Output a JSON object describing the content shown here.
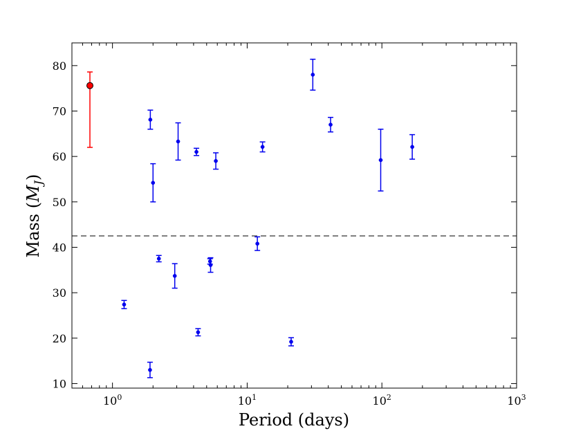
{
  "chart_data": {
    "type": "scatter",
    "xlabel": "Period (days)",
    "ylabel": "Mass (",
    "ylabel_math_symbol": "M",
    "ylabel_math_sub": "J",
    "ylabel_close": ")",
    "x_scale": "log",
    "xlim": [
      0.5,
      1000
    ],
    "ylim": [
      9,
      85
    ],
    "grid": false,
    "x_ticks": [
      {
        "value": 1,
        "base": "10",
        "exp": "0"
      },
      {
        "value": 10,
        "base": "10",
        "exp": "1"
      },
      {
        "value": 100,
        "base": "10",
        "exp": "2"
      },
      {
        "value": 1000,
        "base": "10",
        "exp": "3"
      }
    ],
    "y_ticks": [
      {
        "value": 10,
        "label": "10"
      },
      {
        "value": 20,
        "label": "20"
      },
      {
        "value": 30,
        "label": "30"
      },
      {
        "value": 40,
        "label": "40"
      },
      {
        "value": 50,
        "label": "50"
      },
      {
        "value": 60,
        "label": "60"
      },
      {
        "value": 70,
        "label": "70"
      },
      {
        "value": 80,
        "label": "80"
      }
    ],
    "reference_line": {
      "y": 42.5,
      "style": "dashed",
      "color": "#555555"
    },
    "highlight": {
      "color": "#ff0000",
      "edge_color": "#000000",
      "points": [
        {
          "x": 0.68,
          "y": 75.6,
          "ylo": 62.0,
          "yhi": 78.6
        }
      ]
    },
    "series": [
      {
        "color": "#0000ee",
        "points": [
          {
            "x": 1.22,
            "y": 27.4,
            "ylo": 26.5,
            "yhi": 28.3
          },
          {
            "x": 1.91,
            "y": 68.1,
            "ylo": 66.0,
            "yhi": 70.2
          },
          {
            "x": 1.9,
            "y": 13.0,
            "ylo": 11.3,
            "yhi": 14.7
          },
          {
            "x": 2.0,
            "y": 54.2,
            "ylo": 50.0,
            "yhi": 58.4
          },
          {
            "x": 2.21,
            "y": 37.5,
            "ylo": 36.8,
            "yhi": 38.2
          },
          {
            "x": 2.9,
            "y": 33.7,
            "ylo": 31.0,
            "yhi": 36.4
          },
          {
            "x": 3.07,
            "y": 63.3,
            "ylo": 59.2,
            "yhi": 67.4
          },
          {
            "x": 4.2,
            "y": 61.0,
            "ylo": 60.2,
            "yhi": 61.8
          },
          {
            "x": 4.32,
            "y": 21.3,
            "ylo": 20.5,
            "yhi": 22.1
          },
          {
            "x": 5.3,
            "y": 36.9,
            "ylo": 36.3,
            "yhi": 37.5
          },
          {
            "x": 5.35,
            "y": 36.1,
            "ylo": 34.5,
            "yhi": 37.7
          },
          {
            "x": 5.85,
            "y": 59.0,
            "ylo": 57.2,
            "yhi": 60.8
          },
          {
            "x": 11.9,
            "y": 40.8,
            "ylo": 39.3,
            "yhi": 42.3
          },
          {
            "x": 13.0,
            "y": 62.1,
            "ylo": 61.0,
            "yhi": 63.2
          },
          {
            "x": 21.2,
            "y": 19.2,
            "ylo": 18.3,
            "yhi": 20.1
          },
          {
            "x": 30.7,
            "y": 78.0,
            "ylo": 74.6,
            "yhi": 81.4
          },
          {
            "x": 41.6,
            "y": 67.0,
            "ylo": 65.4,
            "yhi": 68.6
          },
          {
            "x": 98.0,
            "y": 59.2,
            "ylo": 52.4,
            "yhi": 66.0
          },
          {
            "x": 168.0,
            "y": 62.1,
            "ylo": 59.4,
            "yhi": 64.8
          }
        ]
      }
    ]
  }
}
